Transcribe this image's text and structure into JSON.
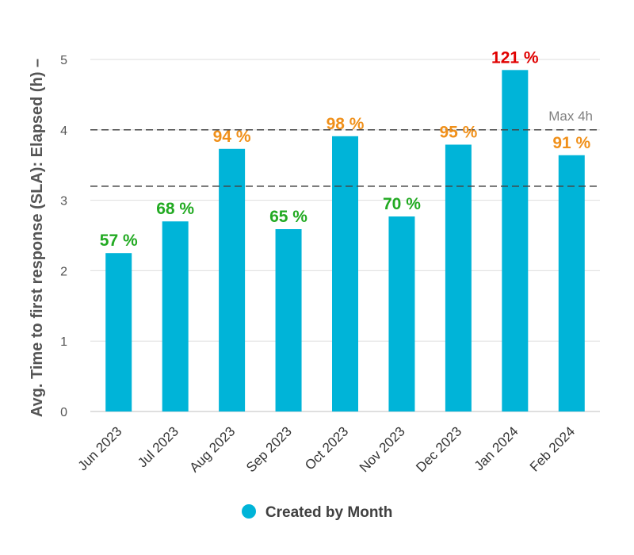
{
  "chart_data": {
    "type": "bar",
    "ylabel": "Avg. Time to first response (SLA): Elapsed (h) –",
    "xlabel": "",
    "ylim": [
      0,
      5
    ],
    "yticks": [
      0,
      1,
      2,
      3,
      4,
      5
    ],
    "grid": true,
    "legend_position": "bottom",
    "categories": [
      "Jun 2023",
      "Jul 2023",
      "Aug 2023",
      "Sep 2023",
      "Oct 2023",
      "Nov 2023",
      "Dec 2023",
      "Jan 2024",
      "Feb 2024"
    ],
    "series": [
      {
        "name": "Created by Month",
        "color": "#00b4d8",
        "values": [
          2.25,
          2.7,
          3.73,
          2.59,
          3.91,
          2.77,
          3.79,
          4.85,
          3.64
        ]
      }
    ],
    "data_labels": [
      "57 %",
      "68 %",
      "94 %",
      "65 %",
      "98 %",
      "70 %",
      "95 %",
      "121 %",
      "91 %"
    ],
    "data_label_colors": [
      "#22aa22",
      "#22aa22",
      "#f0901a",
      "#22aa22",
      "#f0901a",
      "#22aa22",
      "#f0901a",
      "#e00000",
      "#f0901a"
    ],
    "reference_lines": [
      {
        "value": 4,
        "label": "Max 4h"
      },
      {
        "value": 3.2,
        "label": ""
      }
    ]
  },
  "legend": {
    "label": "Created by Month"
  }
}
